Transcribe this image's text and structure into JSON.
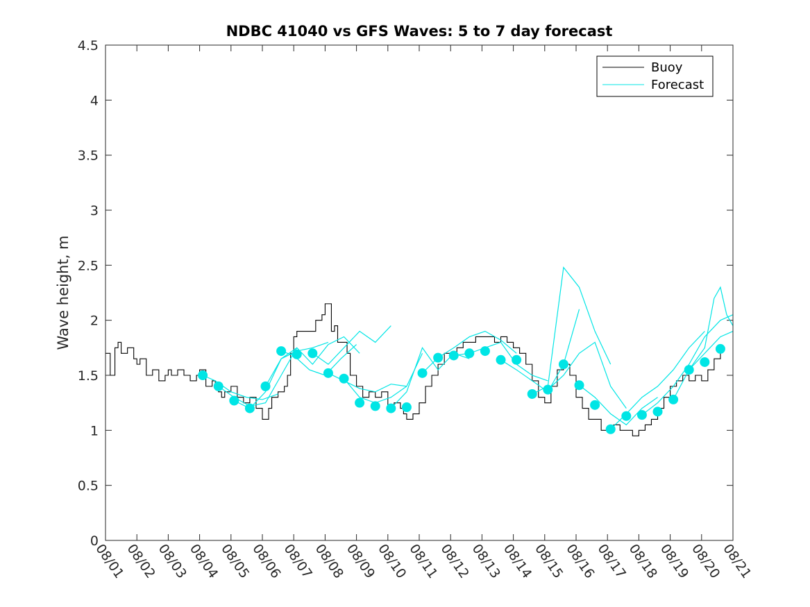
{
  "chart_data": {
    "type": "line",
    "title": "NDBC 41040 vs GFS Waves: 5 to 7 day forecast",
    "xlabel": "",
    "ylabel": "Wave height, m",
    "xlim": [
      0,
      20
    ],
    "ylim": [
      0,
      4.5
    ],
    "xtick_values": [
      0,
      1,
      2,
      3,
      4,
      5,
      6,
      7,
      8,
      9,
      10,
      11,
      12,
      13,
      14,
      15,
      16,
      17,
      18,
      19,
      20
    ],
    "xtick_labels": [
      "08/01",
      "08/02",
      "08/03",
      "08/04",
      "08/05",
      "08/06",
      "08/07",
      "08/08",
      "08/09",
      "08/10",
      "08/11",
      "08/12",
      "08/13",
      "08/14",
      "08/15",
      "08/16",
      "08/17",
      "08/18",
      "08/19",
      "08/20",
      "08/21"
    ],
    "ytick_values": [
      0,
      0.5,
      1,
      1.5,
      2,
      2.5,
      3,
      3.5,
      4,
      4.5
    ],
    "ytick_labels": [
      "0",
      "0.5",
      "1",
      "1.5",
      "2",
      "2.5",
      "3",
      "3.5",
      "4",
      "4.5"
    ],
    "legend": {
      "position": "top-right",
      "entries": [
        {
          "label": "Buoy",
          "color": "#000000"
        },
        {
          "label": "Forecast",
          "color": "#00e5e5"
        }
      ]
    },
    "colors": {
      "buoy": "#000000",
      "forecast": "#00e5e5",
      "marker": "#00e5e5"
    },
    "buoy": {
      "name": "Buoy",
      "x": [
        0,
        0.15,
        0.3,
        0.4,
        0.5,
        0.7,
        0.9,
        1.0,
        1.1,
        1.3,
        1.5,
        1.7,
        1.9,
        2.0,
        2.1,
        2.3,
        2.5,
        2.7,
        2.9,
        3.0,
        3.2,
        3.4,
        3.5,
        3.6,
        3.7,
        3.8,
        4.0,
        4.2,
        4.4,
        4.6,
        4.8,
        5.0,
        5.2,
        5.3,
        5.5,
        5.7,
        5.8,
        5.9,
        6.0,
        6.1,
        6.3,
        6.5,
        6.7,
        6.9,
        7.0,
        7.2,
        7.3,
        7.4,
        7.5,
        7.7,
        7.8,
        8.0,
        8.2,
        8.4,
        8.6,
        8.8,
        9.0,
        9.2,
        9.4,
        9.5,
        9.6,
        9.8,
        10.0,
        10.2,
        10.4,
        10.6,
        10.8,
        11.0,
        11.2,
        11.4,
        11.6,
        11.8,
        12.0,
        12.2,
        12.4,
        12.6,
        12.8,
        13.0,
        13.2,
        13.4,
        13.6,
        13.8,
        14.0,
        14.2,
        14.4,
        14.6,
        14.8,
        15.0,
        15.2,
        15.4,
        15.6,
        15.8,
        16.0,
        16.2,
        16.4,
        16.6,
        16.8,
        17.0,
        17.2,
        17.4,
        17.6,
        17.8,
        18.0,
        18.2,
        18.4,
        18.6,
        18.8,
        19.0,
        19.2,
        19.4,
        19.6
      ],
      "values": [
        1.7,
        1.5,
        1.75,
        1.8,
        1.7,
        1.75,
        1.65,
        1.6,
        1.65,
        1.5,
        1.55,
        1.45,
        1.5,
        1.55,
        1.5,
        1.55,
        1.5,
        1.45,
        1.5,
        1.55,
        1.4,
        1.45,
        1.4,
        1.35,
        1.3,
        1.35,
        1.4,
        1.3,
        1.25,
        1.3,
        1.2,
        1.1,
        1.2,
        1.3,
        1.35,
        1.4,
        1.5,
        1.7,
        1.85,
        1.9,
        1.9,
        1.9,
        2.0,
        2.05,
        2.15,
        1.9,
        1.95,
        1.8,
        1.8,
        1.7,
        1.5,
        1.4,
        1.3,
        1.35,
        1.3,
        1.35,
        1.2,
        1.25,
        1.2,
        1.15,
        1.1,
        1.15,
        1.25,
        1.4,
        1.5,
        1.6,
        1.7,
        1.7,
        1.75,
        1.8,
        1.8,
        1.85,
        1.85,
        1.85,
        1.8,
        1.85,
        1.8,
        1.75,
        1.7,
        1.6,
        1.45,
        1.3,
        1.25,
        1.4,
        1.55,
        1.6,
        1.5,
        1.3,
        1.2,
        1.1,
        1.1,
        1.0,
        1.0,
        1.05,
        1.0,
        1.0,
        0.95,
        1.0,
        1.05,
        1.1,
        1.2,
        1.3,
        1.4,
        1.45,
        1.5,
        1.45,
        1.5,
        1.45,
        1.55,
        1.65,
        1.75
      ]
    },
    "forecast_markers": {
      "x": [
        3.1,
        3.6,
        4.1,
        4.6,
        5.1,
        5.6,
        6.1,
        6.6,
        7.1,
        7.6,
        8.1,
        8.6,
        9.1,
        9.6,
        10.1,
        10.6,
        11.1,
        11.6,
        12.1,
        12.6,
        13.1,
        13.6,
        14.1,
        14.6,
        15.1,
        15.6,
        16.1,
        16.6,
        17.1,
        17.6,
        18.1,
        18.6,
        19.1,
        19.6
      ],
      "values": [
        1.5,
        1.4,
        1.27,
        1.2,
        1.4,
        1.72,
        1.69,
        1.7,
        1.52,
        1.47,
        1.25,
        1.22,
        1.2,
        1.21,
        1.52,
        1.66,
        1.68,
        1.7,
        1.72,
        1.64,
        1.64,
        1.33,
        1.37,
        1.6,
        1.41,
        1.23,
        1.01,
        1.13,
        1.14,
        1.17,
        1.28,
        1.55,
        1.62,
        1.74
      ]
    },
    "forecast_series": [
      {
        "name": "Forecast",
        "x": [
          3.1,
          3.5,
          4.0,
          4.5,
          5.0,
          5.5
        ],
        "values": [
          1.5,
          1.45,
          1.35,
          1.3,
          1.28,
          1.33
        ]
      },
      {
        "name": "Forecast",
        "x": [
          3.6,
          4.1,
          4.6,
          5.1,
          5.6,
          6.1
        ],
        "values": [
          1.4,
          1.3,
          1.22,
          1.25,
          1.5,
          1.75
        ]
      },
      {
        "name": "Forecast",
        "x": [
          4.1,
          4.6,
          5.1,
          5.6,
          6.1,
          6.6,
          7.1
        ],
        "values": [
          1.27,
          1.2,
          1.35,
          1.65,
          1.72,
          1.75,
          1.8
        ]
      },
      {
        "name": "Forecast",
        "x": [
          5.1,
          5.6,
          6.1,
          6.6,
          7.1,
          7.6,
          8.1
        ],
        "values": [
          1.4,
          1.65,
          1.75,
          1.6,
          1.78,
          1.85,
          1.7
        ]
      },
      {
        "name": "Forecast",
        "x": [
          5.6,
          6.0,
          6.5,
          7.0,
          7.5,
          8.0
        ],
        "values": [
          1.72,
          1.68,
          1.55,
          1.5,
          1.65,
          1.78
        ]
      },
      {
        "name": "Forecast",
        "x": [
          6.6,
          7.1,
          7.6,
          8.1,
          8.6,
          9.1
        ],
        "values": [
          1.7,
          1.6,
          1.75,
          1.9,
          1.8,
          1.95
        ]
      },
      {
        "name": "Forecast",
        "x": [
          7.1,
          7.6,
          8.1,
          8.6,
          9.1,
          9.6
        ],
        "values": [
          1.52,
          1.45,
          1.38,
          1.35,
          1.42,
          1.4
        ]
      },
      {
        "name": "Forecast",
        "x": [
          7.6,
          8.1,
          8.6,
          9.1,
          9.6,
          10.1
        ],
        "values": [
          1.47,
          1.3,
          1.25,
          1.3,
          1.4,
          1.7
        ]
      },
      {
        "name": "Forecast",
        "x": [
          9.1,
          9.6,
          10.1,
          10.6,
          11.1,
          11.6
        ],
        "values": [
          1.2,
          1.35,
          1.75,
          1.55,
          1.7,
          1.65
        ]
      },
      {
        "name": "Forecast",
        "x": [
          10.1,
          10.6,
          11.1,
          11.6,
          12.1,
          12.6,
          13.1
        ],
        "values": [
          1.52,
          1.66,
          1.75,
          1.85,
          1.9,
          1.82,
          1.7
        ]
      },
      {
        "name": "Forecast",
        "x": [
          11.1,
          11.6,
          12.1,
          12.6,
          13.1,
          13.6,
          14.1
        ],
        "values": [
          1.68,
          1.7,
          1.75,
          1.8,
          1.6,
          1.5,
          1.45
        ]
      },
      {
        "name": "Forecast",
        "x": [
          12.6,
          13.1,
          13.6,
          14.1,
          14.6,
          15.1
        ],
        "values": [
          1.64,
          1.55,
          1.45,
          1.35,
          1.6,
          2.1
        ]
      },
      {
        "name": "Forecast",
        "x": [
          13.6,
          14.1,
          14.6,
          15.1,
          15.6,
          16.1
        ],
        "values": [
          1.33,
          1.4,
          2.48,
          2.3,
          1.9,
          1.6
        ]
      },
      {
        "name": "Forecast",
        "x": [
          14.1,
          14.6,
          15.1,
          15.6,
          16.1,
          16.6
        ],
        "values": [
          1.37,
          1.5,
          1.7,
          1.8,
          1.4,
          1.2
        ]
      },
      {
        "name": "Forecast",
        "x": [
          15.1,
          15.6,
          16.1,
          16.6,
          17.1,
          17.6
        ],
        "values": [
          1.41,
          1.3,
          1.15,
          1.05,
          1.2,
          1.3
        ]
      },
      {
        "name": "Forecast",
        "x": [
          16.1,
          16.6,
          17.1,
          17.6,
          18.1,
          18.6,
          19.1
        ],
        "values": [
          1.01,
          1.15,
          1.3,
          1.4,
          1.55,
          1.75,
          1.9
        ]
      },
      {
        "name": "Forecast",
        "x": [
          17.1,
          17.6,
          18.1,
          18.6,
          19.1,
          19.6,
          20.0
        ],
        "values": [
          1.14,
          1.25,
          1.4,
          1.6,
          1.85,
          2.0,
          2.05
        ]
      },
      {
        "name": "Forecast",
        "x": [
          18.1,
          18.6,
          19.1,
          19.4,
          19.6,
          19.8,
          20.0
        ],
        "values": [
          1.28,
          1.55,
          1.75,
          2.2,
          2.3,
          2.05,
          1.95
        ]
      },
      {
        "name": "Forecast",
        "x": [
          18.6,
          19.1,
          19.6,
          20.0
        ],
        "values": [
          1.55,
          1.7,
          1.85,
          1.9
        ]
      }
    ]
  }
}
